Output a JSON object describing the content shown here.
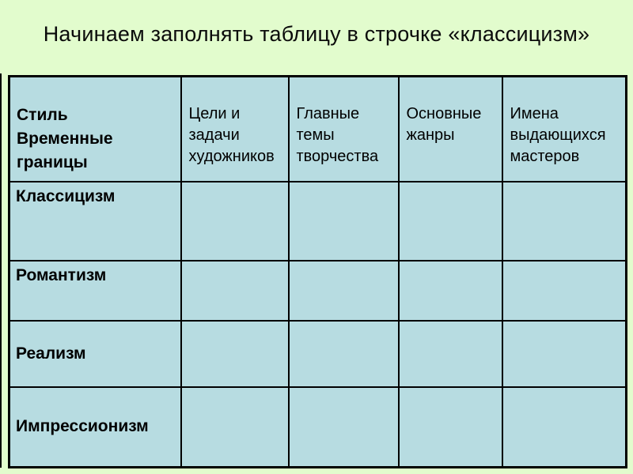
{
  "slide": {
    "title": "Начинаем заполнять таблицу в строчке «классицизм»"
  },
  "table": {
    "columns": [
      "Стиль\nВременные\nграницы",
      "Цели и\nзадачи\nхудожников",
      "Главные\nтемы\nтворчества",
      "Основные\nжанры",
      "Имена\nвыдающихся\nмастеров"
    ],
    "rows": [
      {
        "label": "Классицизм",
        "cells": [
          "",
          "",
          "",
          ""
        ]
      },
      {
        "label": "Романтизм",
        "cells": [
          "",
          "",
          "",
          ""
        ]
      },
      {
        "label": "Реализм",
        "cells": [
          "",
          "",
          "",
          ""
        ]
      },
      {
        "label": "Импрессионизм",
        "cells": [
          "",
          "",
          "",
          ""
        ]
      }
    ]
  },
  "colors": {
    "background": "#e2fccd",
    "cell_fill": "#b7dce1",
    "border": "#000000",
    "text": "#000000"
  }
}
